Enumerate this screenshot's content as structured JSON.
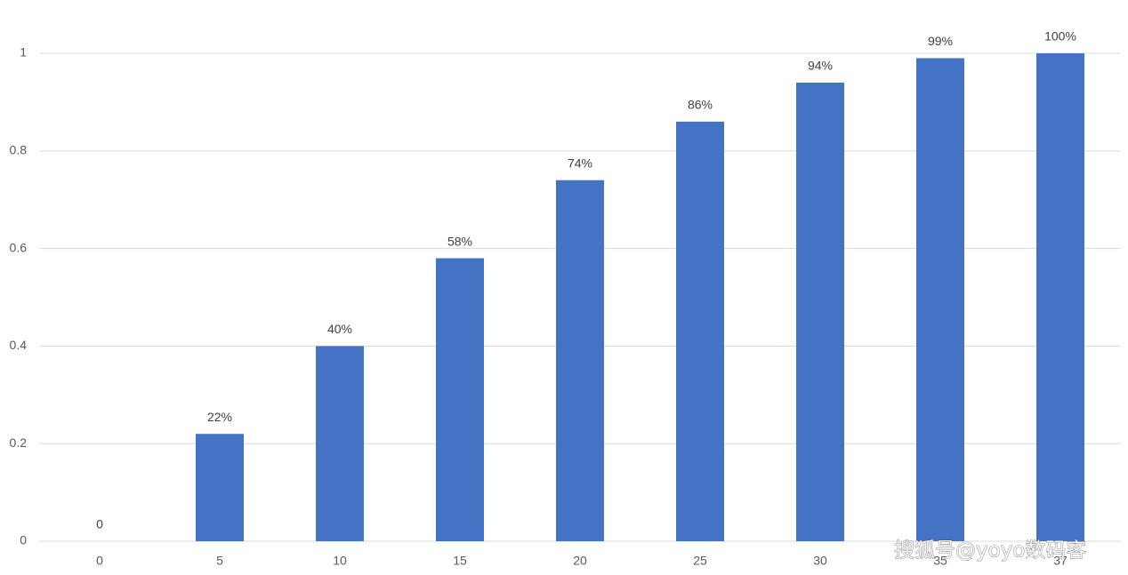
{
  "chart_data": {
    "type": "bar",
    "categories": [
      "0",
      "5",
      "10",
      "15",
      "20",
      "25",
      "30",
      "35",
      "37"
    ],
    "values": [
      0,
      0.22,
      0.4,
      0.58,
      0.74,
      0.86,
      0.94,
      0.99,
      1
    ],
    "value_labels": [
      "0",
      "22%",
      "40%",
      "58%",
      "74%",
      "86%",
      "94%",
      "99%",
      "100%"
    ],
    "color": "#4472c4",
    "ylim": [
      0,
      1
    ],
    "yticks": [
      0,
      0.2,
      0.4,
      0.6,
      0.8,
      1
    ],
    "grid": true,
    "watermark": "搜狐号@yoyo数码客"
  }
}
